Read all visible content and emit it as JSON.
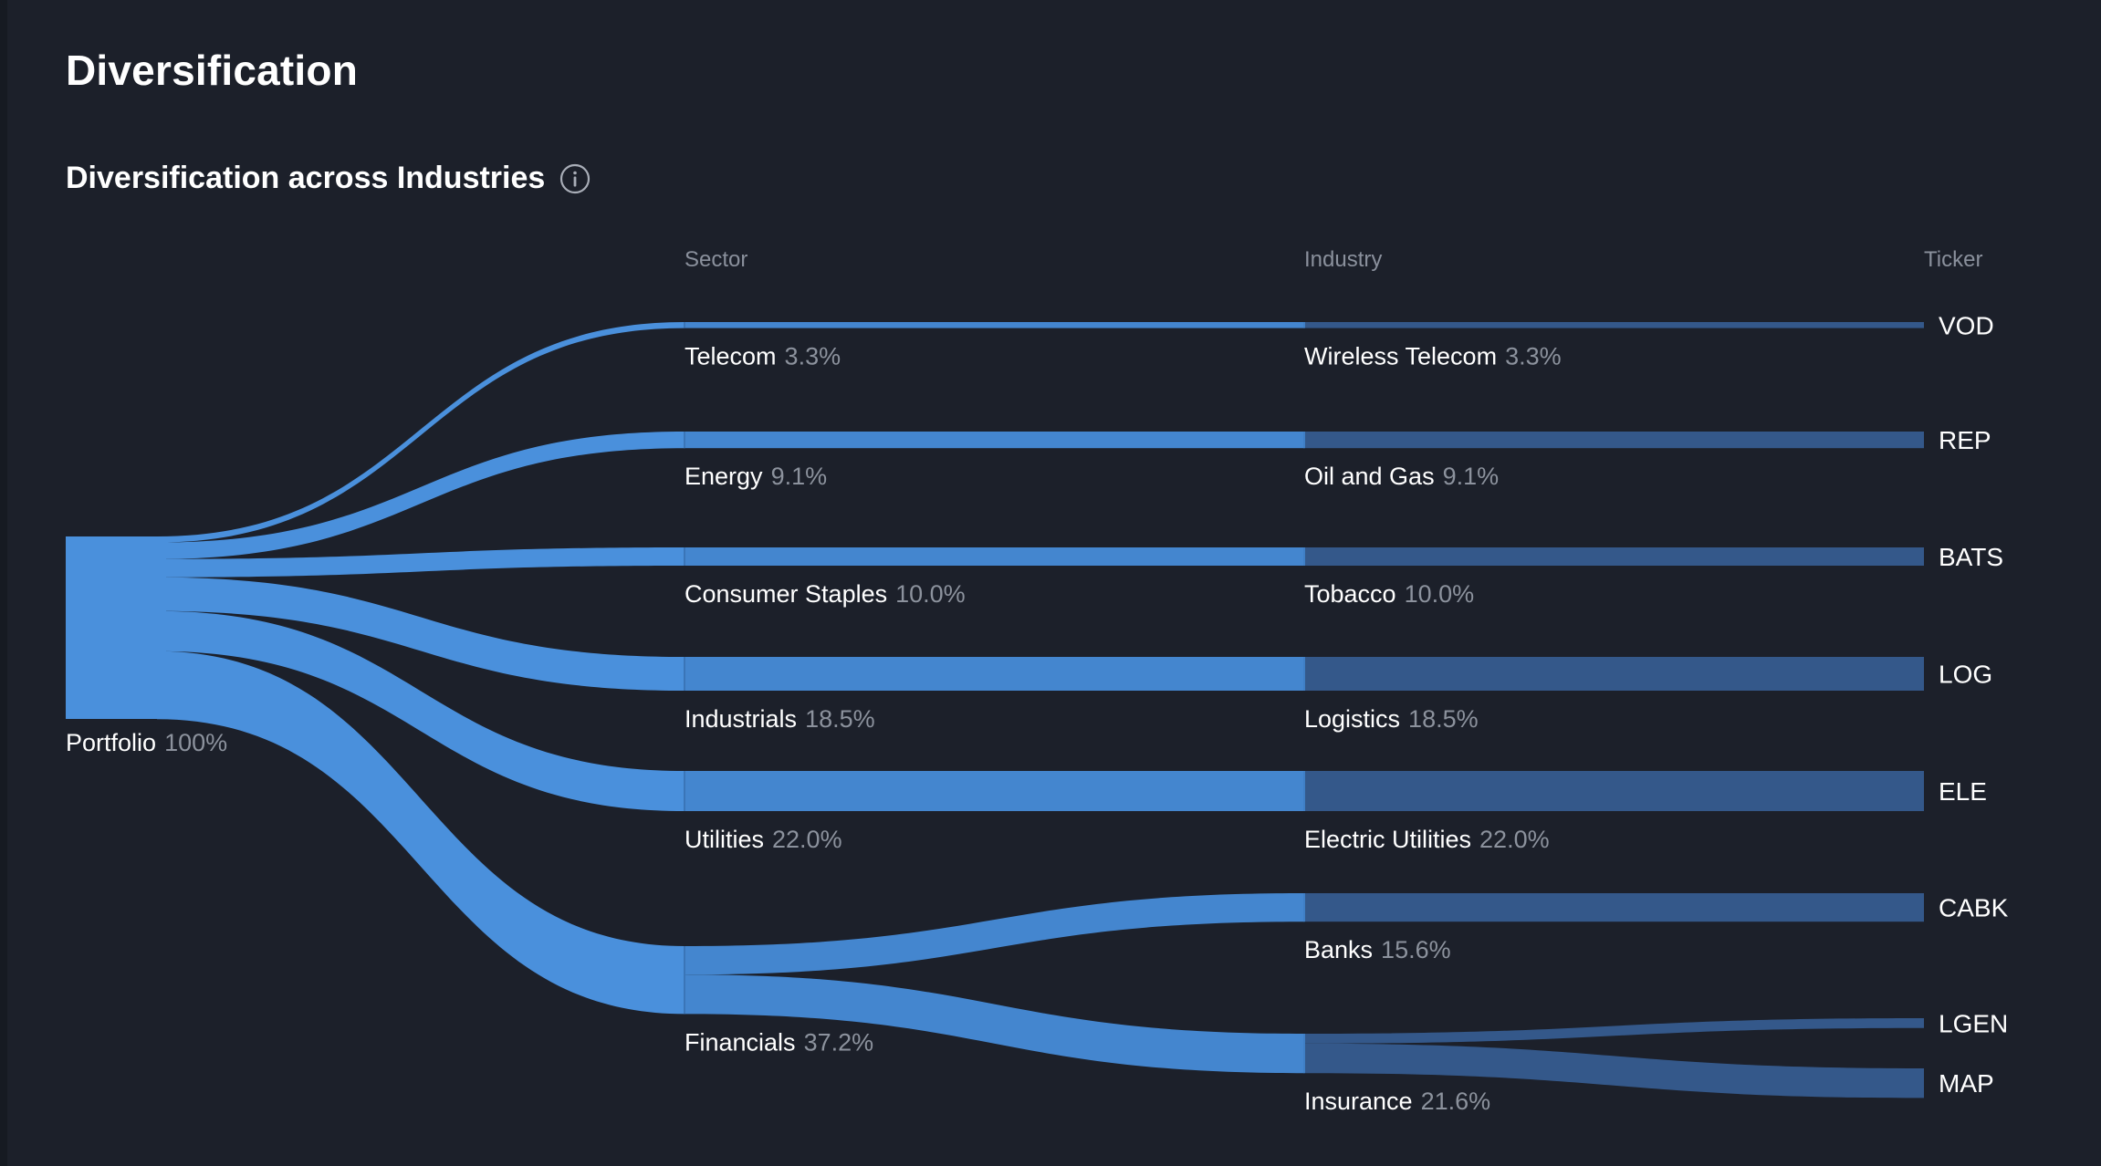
{
  "page": {
    "title": "Diversification",
    "section_title": "Diversification across Industries",
    "info_icon": "info-circle-icon"
  },
  "colors": {
    "background": "#1c202a",
    "link": "#4a90dc",
    "sector_bar": "#4486cf",
    "industry_bar": "#34588a",
    "muted_text": "#8c929d"
  },
  "chart_data": {
    "type": "sankey",
    "columns": [
      "Sector",
      "Industry",
      "Ticker"
    ],
    "root": {
      "name": "Portfolio",
      "pct": "100%"
    },
    "sectors": [
      {
        "name": "Telecom",
        "pct": "3.3%",
        "value": 3.3
      },
      {
        "name": "Energy",
        "pct": "9.1%",
        "value": 9.1
      },
      {
        "name": "Consumer Staples",
        "pct": "10.0%",
        "value": 10.0
      },
      {
        "name": "Industrials",
        "pct": "18.5%",
        "value": 18.5
      },
      {
        "name": "Utilities",
        "pct": "22.0%",
        "value": 22.0
      },
      {
        "name": "Financials",
        "pct": "37.2%",
        "value": 37.2
      }
    ],
    "industries": [
      {
        "name": "Wireless Telecom",
        "pct": "3.3%",
        "value": 3.3,
        "sector": "Telecom"
      },
      {
        "name": "Oil and Gas",
        "pct": "9.1%",
        "value": 9.1,
        "sector": "Energy"
      },
      {
        "name": "Tobacco",
        "pct": "10.0%",
        "value": 10.0,
        "sector": "Consumer Staples"
      },
      {
        "name": "Logistics",
        "pct": "18.5%",
        "value": 18.5,
        "sector": "Industrials"
      },
      {
        "name": "Electric Utilities",
        "pct": "22.0%",
        "value": 22.0,
        "sector": "Utilities"
      },
      {
        "name": "Banks",
        "pct": "15.6%",
        "value": 15.6,
        "sector": "Financials"
      },
      {
        "name": "Insurance",
        "pct": "21.6%",
        "value": 21.6,
        "sector": "Financials"
      }
    ],
    "tickers": [
      {
        "name": "VOD",
        "industry": "Wireless Telecom",
        "value": 3.3
      },
      {
        "name": "REP",
        "industry": "Oil and Gas",
        "value": 9.1
      },
      {
        "name": "BATS",
        "industry": "Tobacco",
        "value": 10.0
      },
      {
        "name": "LOG",
        "industry": "Logistics",
        "value": 18.5
      },
      {
        "name": "ELE",
        "industry": "Electric Utilities",
        "value": 22.0
      },
      {
        "name": "CABK",
        "industry": "Banks",
        "value": 15.6
      },
      {
        "name": "LGEN",
        "industry": "Insurance",
        "value": 5.4
      },
      {
        "name": "MAP",
        "industry": "Insurance",
        "value": 16.2
      }
    ]
  }
}
